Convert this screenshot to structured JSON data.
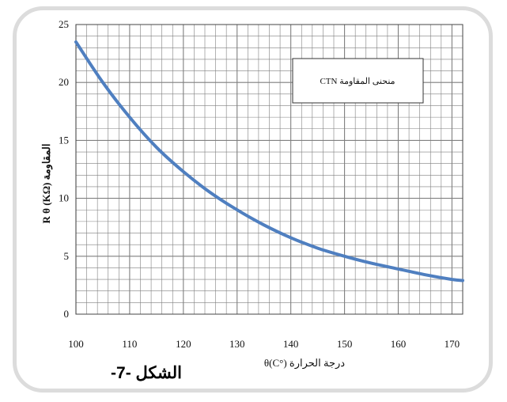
{
  "chart_data": {
    "type": "line",
    "x": [
      100,
      105,
      110,
      115,
      120,
      125,
      130,
      135,
      140,
      145,
      150,
      155,
      160,
      165,
      170,
      172
    ],
    "series": [
      {
        "name": "CTN  منحنى المقاومة",
        "color": "#4f7fc0",
        "values": [
          23.5,
          20.0,
          17.0,
          14.4,
          12.3,
          10.5,
          9.0,
          7.7,
          6.6,
          5.7,
          5.0,
          4.4,
          3.9,
          3.4,
          3.0,
          2.9
        ]
      }
    ],
    "xlim": [
      100,
      172
    ],
    "ylim": [
      0,
      25
    ],
    "x_ticks": [
      "100",
      "110",
      "120",
      "130",
      "140",
      "150",
      "160",
      "170"
    ],
    "y_ticks": [
      "0",
      "5",
      "10",
      "15",
      "20",
      "25"
    ],
    "xlabel": "θ(C°)  درجة الحرارة",
    "ylabel": "R θ (KΩ)  المقاومة",
    "legend_position": "top-right",
    "grid": true,
    "grid_color": "#7f7f7f",
    "caption": "الشكل -7-"
  }
}
